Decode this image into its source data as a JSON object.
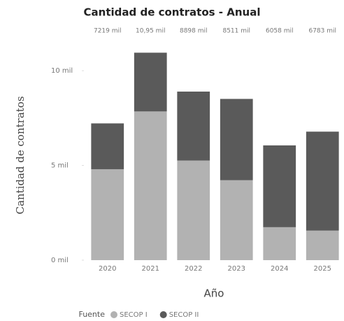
{
  "chart_data": {
    "type": "stacked_bar",
    "title": "Cantidad de contratos - Anual",
    "categories": [
      "2020",
      "2021",
      "2022",
      "2023",
      "2024",
      "2025"
    ],
    "series": [
      {
        "name": "SECOP I",
        "color": "#b2b2b2",
        "values": [
          4800,
          7850,
          5260,
          4220,
          1740,
          1560
        ]
      },
      {
        "name": "SECOP II",
        "color": "#5a5a5a",
        "values": [
          2419,
          3100,
          3638,
          4291,
          4318,
          5223
        ]
      }
    ],
    "total_labels": [
      "7219 mil",
      "10,95 mil",
      "8898 mil",
      "8511 mil",
      "6058 mil",
      "6783 mil"
    ],
    "ylim": [
      0,
      11000
    ],
    "yticks": [
      {
        "value": 0,
        "label": "0 mil"
      },
      {
        "value": 5000,
        "label": "5 mil"
      },
      {
        "value": 10000,
        "label": "10 mil"
      }
    ],
    "x_label": "Año",
    "y_label": "Cantidad de contratos",
    "legend_title": "Fuente"
  }
}
